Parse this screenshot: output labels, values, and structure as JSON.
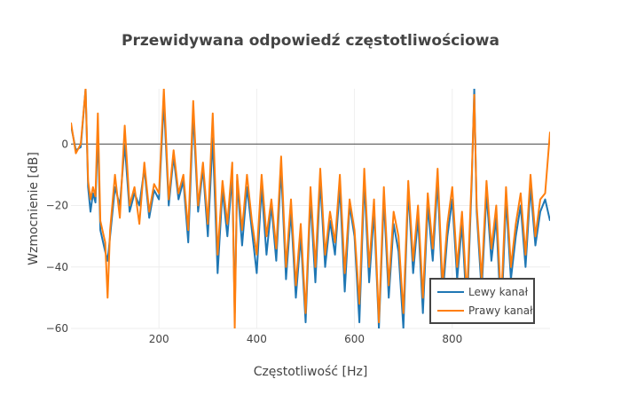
{
  "chart_data": {
    "type": "line",
    "title": "Przewidywana odpowiedź częstotliwościowa",
    "xlabel": "Częstotliwość [Hz]",
    "ylabel": "Wzmocnienie [dB]",
    "xlim": [
      20,
      1000
    ],
    "ylim": [
      -60,
      18
    ],
    "x_ticks": [
      200,
      400,
      600,
      800
    ],
    "y_ticks": [
      0,
      -20,
      -40,
      -60
    ],
    "y_tick_labels": [
      "0",
      "−20",
      "−40",
      "−60"
    ],
    "grid": true,
    "zero_line": true,
    "legend_position": "bottom-right",
    "series": [
      {
        "name": "Lewy kanał",
        "color": "#1f77b4",
        "x": [
          20,
          30,
          40,
          50,
          55,
          60,
          65,
          70,
          75,
          80,
          90,
          95,
          100,
          110,
          120,
          130,
          140,
          150,
          160,
          170,
          180,
          190,
          200,
          210,
          220,
          230,
          240,
          250,
          260,
          270,
          280,
          290,
          300,
          310,
          320,
          330,
          340,
          350,
          355,
          360,
          370,
          380,
          390,
          400,
          410,
          420,
          430,
          440,
          450,
          460,
          470,
          480,
          490,
          500,
          510,
          520,
          530,
          540,
          550,
          560,
          570,
          580,
          590,
          600,
          610,
          620,
          630,
          640,
          650,
          660,
          670,
          680,
          690,
          700,
          710,
          720,
          730,
          740,
          750,
          760,
          770,
          780,
          790,
          800,
          810,
          820,
          830,
          840,
          845,
          850,
          860,
          870,
          880,
          890,
          900,
          910,
          920,
          930,
          940,
          950,
          960,
          970,
          980,
          990,
          1000
        ],
        "y": [
          6,
          -2,
          -1,
          18,
          -14,
          -22,
          -16,
          -19,
          4,
          -28,
          -35,
          -38,
          -30,
          -14,
          -20,
          0,
          -22,
          -16,
          -20,
          -8,
          -24,
          -15,
          -18,
          14,
          -20,
          -4,
          -18,
          -12,
          -32,
          10,
          -22,
          -8,
          -30,
          2,
          -42,
          -15,
          -30,
          -10,
          -55,
          -12,
          -33,
          -14,
          -28,
          -42,
          -14,
          -36,
          -20,
          -38,
          -8,
          -44,
          -22,
          -50,
          -30,
          -58,
          -18,
          -45,
          -12,
          -40,
          -25,
          -36,
          -14,
          -48,
          -20,
          -30,
          -58,
          -12,
          -45,
          -22,
          -60,
          -18,
          -50,
          -26,
          -35,
          -60,
          -15,
          -42,
          -24,
          -55,
          -20,
          -38,
          -12,
          -50,
          -30,
          -18,
          -44,
          -26,
          -55,
          -12,
          18,
          -22,
          -48,
          -16,
          -38,
          -24,
          -58,
          -18,
          -44,
          -30,
          -20,
          -40,
          -14,
          -33,
          -22,
          -18,
          -25
        ]
      },
      {
        "name": "Prawy kanał",
        "color": "#ff7f0e",
        "x": [
          20,
          30,
          40,
          50,
          55,
          60,
          65,
          70,
          75,
          80,
          90,
          95,
          100,
          110,
          120,
          130,
          140,
          150,
          160,
          170,
          180,
          190,
          200,
          210,
          220,
          230,
          240,
          250,
          260,
          270,
          280,
          290,
          300,
          310,
          320,
          330,
          340,
          350,
          355,
          360,
          370,
          380,
          390,
          400,
          410,
          420,
          430,
          440,
          450,
          460,
          470,
          480,
          490,
          500,
          510,
          520,
          530,
          540,
          550,
          560,
          570,
          580,
          590,
          600,
          610,
          620,
          630,
          640,
          650,
          660,
          670,
          680,
          690,
          700,
          710,
          720,
          730,
          740,
          750,
          760,
          770,
          780,
          790,
          800,
          810,
          820,
          830,
          840,
          845,
          850,
          860,
          870,
          880,
          890,
          900,
          910,
          920,
          930,
          940,
          950,
          960,
          970,
          980,
          990,
          1000
        ],
        "y": [
          7,
          -3,
          0,
          18,
          -12,
          -18,
          -14,
          -17,
          10,
          -25,
          -32,
          -50,
          -28,
          -10,
          -24,
          6,
          -20,
          -14,
          -26,
          -6,
          -22,
          -13,
          -16,
          18,
          -18,
          -2,
          -16,
          -10,
          -28,
          14,
          -20,
          -6,
          -26,
          10,
          -36,
          -12,
          -26,
          -6,
          -60,
          -10,
          -28,
          -10,
          -25,
          -36,
          -10,
          -30,
          -18,
          -34,
          -4,
          -40,
          -18,
          -46,
          -26,
          -55,
          -14,
          -40,
          -8,
          -36,
          -22,
          -32,
          -10,
          -42,
          -18,
          -28,
          -52,
          -8,
          -40,
          -18,
          -58,
          -14,
          -46,
          -22,
          -30,
          -55,
          -12,
          -38,
          -20,
          -50,
          -16,
          -34,
          -8,
          -46,
          -26,
          -14,
          -40,
          -22,
          -50,
          -10,
          16,
          -20,
          -44,
          -12,
          -34,
          -20,
          -52,
          -14,
          -40,
          -26,
          -16,
          -36,
          -10,
          -30,
          -18,
          -16,
          4
        ]
      }
    ]
  }
}
